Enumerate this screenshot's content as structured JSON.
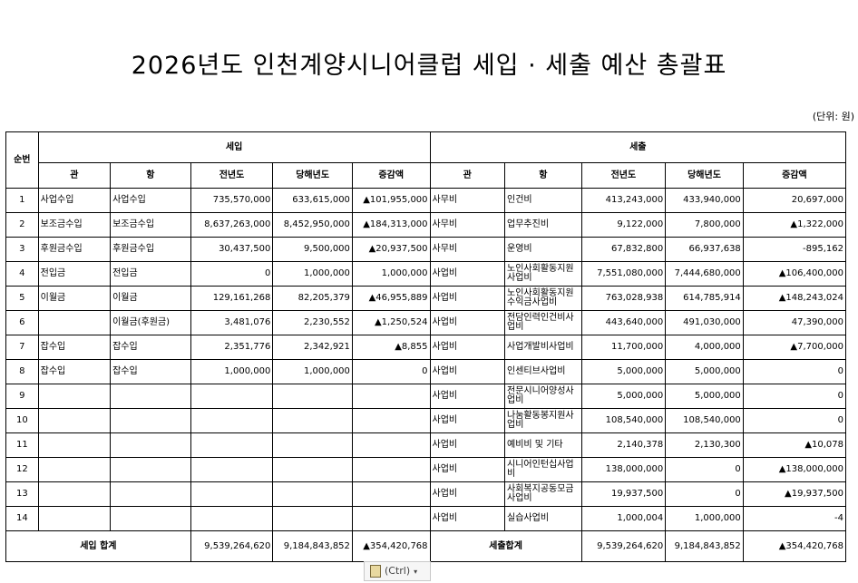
{
  "title": "2026년도  인천계양시니어클럽  세입  ·  세출  예산  총괄표",
  "unit_label": "(단위: 원)",
  "header": {
    "seq": "순번",
    "income_group": "세입",
    "expense_group": "세출",
    "income_cols": [
      "관",
      "항",
      "전년도",
      "당해년도",
      "증감액"
    ],
    "expense_cols": [
      "관",
      "항",
      "전년도",
      "당해년도",
      "증감액"
    ]
  },
  "rows": [
    {
      "no": "1",
      "in_gwan": "사업수입",
      "in_hang": "사업수입",
      "in_prev": "735,570,000",
      "in_curr": "633,615,000",
      "in_diff": "▲101,955,000",
      "ex_gwan": "사무비",
      "ex_hang": "인건비",
      "ex_prev": "413,243,000",
      "ex_curr": "433,940,000",
      "ex_diff": "20,697,000"
    },
    {
      "no": "2",
      "in_gwan": "보조금수입",
      "in_hang": "보조금수입",
      "in_prev": "8,637,263,000",
      "in_curr": "8,452,950,000",
      "in_diff": "▲184,313,000",
      "ex_gwan": "사무비",
      "ex_hang": "업무추진비",
      "ex_prev": "9,122,000",
      "ex_curr": "7,800,000",
      "ex_diff": "▲1,322,000"
    },
    {
      "no": "3",
      "in_gwan": "후원금수입",
      "in_hang": "후원금수입",
      "in_prev": "30,437,500",
      "in_curr": "9,500,000",
      "in_diff": "▲20,937,500",
      "ex_gwan": "사무비",
      "ex_hang": "운영비",
      "ex_prev": "67,832,800",
      "ex_curr": "66,937,638",
      "ex_diff": "-895,162"
    },
    {
      "no": "4",
      "in_gwan": "전입금",
      "in_hang": "전입금",
      "in_prev": "0",
      "in_curr": "1,000,000",
      "in_diff": "1,000,000",
      "ex_gwan": "사업비",
      "ex_hang": "노인사회활동지원사업비",
      "ex_prev": "7,551,080,000",
      "ex_curr": "7,444,680,000",
      "ex_diff": "▲106,400,000"
    },
    {
      "no": "5",
      "in_gwan": "이월금",
      "in_hang": "이월금",
      "in_prev": "129,161,268",
      "in_curr": "82,205,379",
      "in_diff": "▲46,955,889",
      "ex_gwan": "사업비",
      "ex_hang": "노인사회활동지원수익금사업비",
      "ex_prev": "763,028,938",
      "ex_curr": "614,785,914",
      "ex_diff": "▲148,243,024"
    },
    {
      "no": "6",
      "in_gwan": "",
      "in_hang": "이월금(후원금)",
      "in_prev": "3,481,076",
      "in_curr": "2,230,552",
      "in_diff": "▲1,250,524",
      "ex_gwan": "사업비",
      "ex_hang": "전담인력인건비사업비",
      "ex_prev": "443,640,000",
      "ex_curr": "491,030,000",
      "ex_diff": "47,390,000"
    },
    {
      "no": "7",
      "in_gwan": "잡수입",
      "in_hang": "잡수입",
      "in_prev": "2,351,776",
      "in_curr": "2,342,921",
      "in_diff": "▲8,855",
      "ex_gwan": "사업비",
      "ex_hang": "사업개발비사업비",
      "ex_prev": "11,700,000",
      "ex_curr": "4,000,000",
      "ex_diff": "▲7,700,000"
    },
    {
      "no": "8",
      "in_gwan": "잡수입",
      "in_hang": "잡수입",
      "in_prev": "1,000,000",
      "in_curr": "1,000,000",
      "in_diff": "0",
      "ex_gwan": "사업비",
      "ex_hang": "인센티브사업비",
      "ex_prev": "5,000,000",
      "ex_curr": "5,000,000",
      "ex_diff": "0"
    },
    {
      "no": "9",
      "in_gwan": "",
      "in_hang": "",
      "in_prev": "",
      "in_curr": "",
      "in_diff": "",
      "ex_gwan": "사업비",
      "ex_hang": "전문시니어양성사업비",
      "ex_prev": "5,000,000",
      "ex_curr": "5,000,000",
      "ex_diff": "0"
    },
    {
      "no": "10",
      "in_gwan": "",
      "in_hang": "",
      "in_prev": "",
      "in_curr": "",
      "in_diff": "",
      "ex_gwan": "사업비",
      "ex_hang": "나눔활동봉지원사업비",
      "ex_prev": "108,540,000",
      "ex_curr": "108,540,000",
      "ex_diff": "0"
    },
    {
      "no": "11",
      "in_gwan": "",
      "in_hang": "",
      "in_prev": "",
      "in_curr": "",
      "in_diff": "",
      "ex_gwan": "사업비",
      "ex_hang": "예비비 및 기타",
      "ex_prev": "2,140,378",
      "ex_curr": "2,130,300",
      "ex_diff": "▲10,078"
    },
    {
      "no": "12",
      "in_gwan": "",
      "in_hang": "",
      "in_prev": "",
      "in_curr": "",
      "in_diff": "",
      "ex_gwan": "사업비",
      "ex_hang": "시니어인턴십사업비",
      "ex_prev": "138,000,000",
      "ex_curr": "0",
      "ex_diff": "▲138,000,000"
    },
    {
      "no": "13",
      "in_gwan": "",
      "in_hang": "",
      "in_prev": "",
      "in_curr": "",
      "in_diff": "",
      "ex_gwan": "사업비",
      "ex_hang": "사회복지공동모금사업비",
      "ex_prev": "19,937,500",
      "ex_curr": "0",
      "ex_diff": "▲19,937,500"
    },
    {
      "no": "14",
      "in_gwan": "",
      "in_hang": "",
      "in_prev": "",
      "in_curr": "",
      "in_diff": "",
      "ex_gwan": "사업비",
      "ex_hang": "실습사업비",
      "ex_prev": "1,000,004",
      "ex_curr": "1,000,000",
      "ex_diff": "-4"
    }
  ],
  "totals": {
    "income_label": "세입 합계",
    "in_prev": "9,539,264,620",
    "in_curr": "9,184,843,852",
    "in_diff": "▲354,420,768",
    "expense_label": "세출합계",
    "ex_prev": "9,539,264,620",
    "ex_curr": "9,184,843,852",
    "ex_diff": "▲354,420,768"
  },
  "paste_tag": {
    "label": "(Ctrl)",
    "icon": "clipboard-icon"
  }
}
